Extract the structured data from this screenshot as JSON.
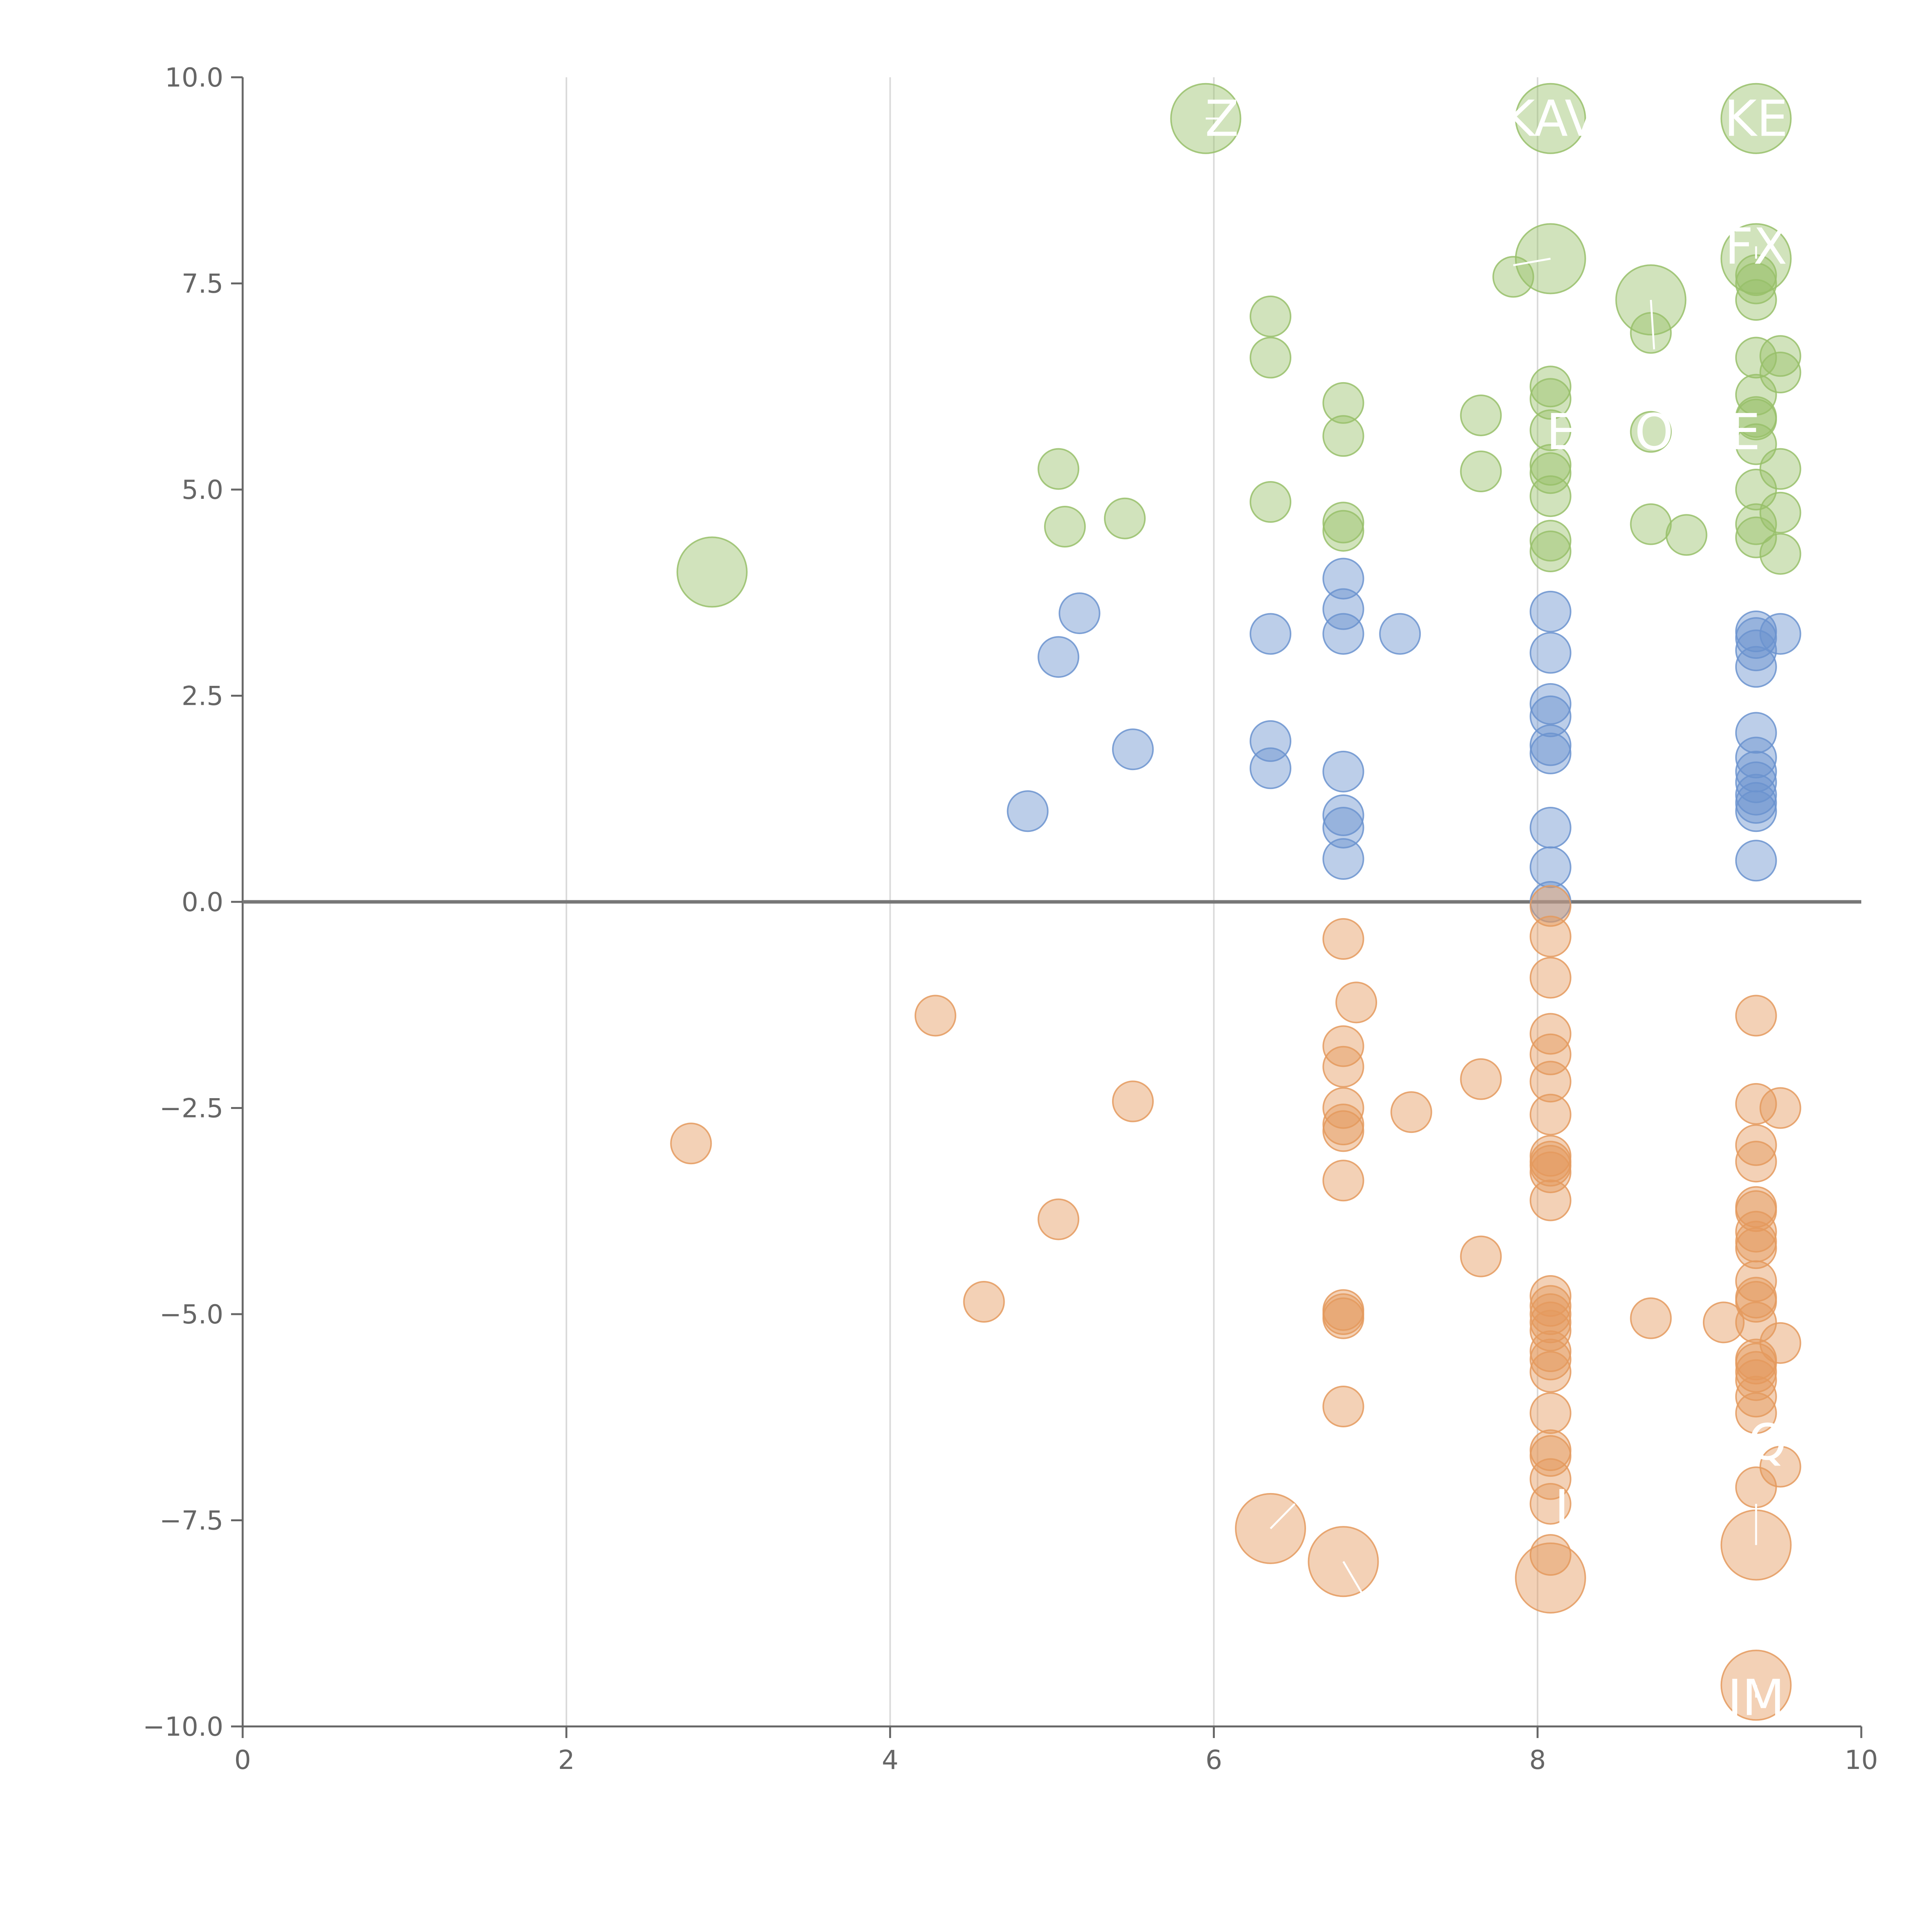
{
  "chart_data": {
    "type": "scatter",
    "title": "",
    "xlabel": "",
    "ylabel": "",
    "xlim": [
      0,
      10
    ],
    "ylim": [
      -10,
      10
    ],
    "x_ticks": [
      "0",
      "2",
      "4",
      "6",
      "8",
      "10"
    ],
    "y_ticks": [
      "10.0",
      "7.5",
      "5.0",
      "2.5",
      "0.0",
      "−2.5",
      "−5.0",
      "−7.5",
      "−10.0"
    ],
    "grid": "vertical gridlines at x ticks",
    "zero_line": true,
    "colors": {
      "green": "#98c06a",
      "blue": "#6b93cf",
      "orange": "#e49a5e"
    },
    "series": [
      {
        "color": "green",
        "points": [
          [
            2.9,
            4.0,
            2
          ],
          [
            5.04,
            5.25,
            1
          ],
          [
            5.08,
            4.55,
            1
          ],
          [
            5.45,
            4.65,
            1
          ],
          [
            6.35,
            7.1,
            1
          ],
          [
            6.35,
            6.6,
            1
          ],
          [
            6.35,
            4.85,
            1
          ],
          [
            6.8,
            6.05,
            1
          ],
          [
            6.8,
            5.65,
            1
          ],
          [
            6.8,
            4.6,
            1
          ],
          [
            6.8,
            4.5,
            1
          ],
          [
            7.65,
            5.9,
            1
          ],
          [
            7.65,
            5.22,
            1
          ],
          [
            7.85,
            7.58,
            1
          ],
          [
            8.08,
            6.25,
            1
          ],
          [
            8.08,
            6.1,
            1
          ],
          [
            8.08,
            5.72,
            1
          ],
          [
            8.08,
            5.3,
            1
          ],
          [
            8.08,
            5.2,
            1
          ],
          [
            8.08,
            4.92,
            1
          ],
          [
            8.08,
            4.38,
            1
          ],
          [
            8.08,
            4.25,
            1
          ],
          [
            8.7,
            6.9,
            1
          ],
          [
            8.7,
            5.7,
            1
          ],
          [
            8.7,
            4.58,
            1
          ],
          [
            8.92,
            4.45,
            1
          ],
          [
            9.35,
            7.6,
            1
          ],
          [
            9.35,
            7.5,
            1
          ],
          [
            9.35,
            7.3,
            1
          ],
          [
            9.35,
            6.6,
            1
          ],
          [
            9.35,
            6.15,
            1
          ],
          [
            9.35,
            5.88,
            1
          ],
          [
            9.35,
            5.85,
            1
          ],
          [
            9.35,
            5.55,
            1
          ],
          [
            9.35,
            5.0,
            1
          ],
          [
            9.35,
            4.58,
            1
          ],
          [
            9.35,
            4.42,
            1
          ],
          [
            9.5,
            6.62,
            1
          ],
          [
            9.5,
            6.42,
            1
          ],
          [
            9.5,
            5.25,
            1
          ],
          [
            9.5,
            4.72,
            1
          ],
          [
            9.5,
            4.22,
            1
          ]
        ]
      },
      {
        "color": "green",
        "points": [
          [
            5.95,
            9.5,
            2
          ],
          [
            8.08,
            9.5,
            2
          ],
          [
            9.35,
            9.5,
            2
          ],
          [
            8.08,
            7.8,
            2
          ],
          [
            8.7,
            7.3,
            2
          ],
          [
            9.35,
            7.8,
            2
          ]
        ]
      },
      {
        "color": "blue",
        "points": [
          [
            4.85,
            1.1,
            1
          ],
          [
            5.04,
            2.97,
            1
          ],
          [
            5.17,
            3.5,
            1
          ],
          [
            5.5,
            1.85,
            1
          ],
          [
            6.35,
            3.25,
            1
          ],
          [
            6.35,
            1.95,
            1
          ],
          [
            6.35,
            1.62,
            1
          ],
          [
            6.8,
            3.92,
            1
          ],
          [
            6.8,
            3.55,
            1
          ],
          [
            6.8,
            3.25,
            1
          ],
          [
            6.8,
            1.58,
            1
          ],
          [
            6.8,
            1.05,
            1
          ],
          [
            6.8,
            0.9,
            1
          ],
          [
            6.8,
            0.52,
            1
          ],
          [
            7.15,
            3.25,
            1
          ],
          [
            8.08,
            3.52,
            1
          ],
          [
            8.08,
            3.02,
            1
          ],
          [
            8.08,
            2.4,
            1
          ],
          [
            8.08,
            2.25,
            1
          ],
          [
            8.08,
            1.9,
            1
          ],
          [
            8.08,
            1.8,
            1
          ],
          [
            8.08,
            0.9,
            1
          ],
          [
            8.08,
            0.42,
            1
          ],
          [
            8.08,
            0.0,
            1
          ],
          [
            9.35,
            3.28,
            1
          ],
          [
            9.35,
            3.2,
            1
          ],
          [
            9.35,
            3.05,
            1
          ],
          [
            9.35,
            2.85,
            1
          ],
          [
            9.35,
            2.05,
            1
          ],
          [
            9.35,
            1.75,
            1
          ],
          [
            9.35,
            1.58,
            1
          ],
          [
            9.35,
            1.45,
            1
          ],
          [
            9.35,
            1.3,
            1
          ],
          [
            9.35,
            1.2,
            1
          ],
          [
            9.35,
            1.1,
            1
          ],
          [
            9.35,
            0.5,
            1
          ],
          [
            9.5,
            3.25,
            1
          ]
        ]
      },
      {
        "color": "orange",
        "points": [
          [
            2.77,
            -2.93,
            1
          ],
          [
            4.28,
            -1.38,
            1
          ],
          [
            4.58,
            -4.85,
            1
          ],
          [
            5.04,
            -3.85,
            1
          ],
          [
            5.5,
            -2.42,
            1
          ],
          [
            6.8,
            -0.45,
            1
          ],
          [
            6.8,
            -1.75,
            1
          ],
          [
            6.8,
            -2.0,
            1
          ],
          [
            6.8,
            -2.5,
            1
          ],
          [
            6.8,
            -2.7,
            1
          ],
          [
            6.8,
            -2.78,
            1
          ],
          [
            6.8,
            -3.38,
            1
          ],
          [
            6.8,
            -4.95,
            1
          ],
          [
            6.8,
            -5.0,
            1
          ],
          [
            6.8,
            -5.05,
            1
          ],
          [
            6.8,
            -6.12,
            1
          ],
          [
            6.88,
            -1.22,
            1
          ],
          [
            7.22,
            -2.55,
            1
          ],
          [
            7.65,
            -2.15,
            1
          ],
          [
            7.65,
            -4.3,
            1
          ],
          [
            8.08,
            -0.05,
            1
          ],
          [
            8.08,
            -0.42,
            1
          ],
          [
            8.08,
            -0.92,
            1
          ],
          [
            8.08,
            -1.6,
            1
          ],
          [
            8.08,
            -1.85,
            1
          ],
          [
            8.08,
            -2.18,
            1
          ],
          [
            8.08,
            -2.58,
            1
          ],
          [
            8.08,
            -3.08,
            1
          ],
          [
            8.08,
            -3.15,
            1
          ],
          [
            8.08,
            -3.2,
            1
          ],
          [
            8.08,
            -3.28,
            1
          ],
          [
            8.08,
            -3.62,
            1
          ],
          [
            8.08,
            -4.78,
            1
          ],
          [
            8.08,
            -4.9,
            1
          ],
          [
            8.08,
            -5.0,
            1
          ],
          [
            8.08,
            -5.1,
            1
          ],
          [
            8.08,
            -5.2,
            1
          ],
          [
            8.08,
            -5.45,
            1
          ],
          [
            8.08,
            -5.55,
            1
          ],
          [
            8.08,
            -5.7,
            1
          ],
          [
            8.08,
            -6.2,
            1
          ],
          [
            8.08,
            -6.65,
            1
          ],
          [
            8.08,
            -6.72,
            1
          ],
          [
            8.08,
            -7.0,
            1
          ],
          [
            8.08,
            -7.3,
            1
          ],
          [
            8.08,
            -7.92,
            1
          ],
          [
            8.7,
            -5.05,
            1
          ],
          [
            9.15,
            -5.1,
            1
          ],
          [
            9.35,
            -1.38,
            1
          ],
          [
            9.35,
            -2.45,
            1
          ],
          [
            9.35,
            -2.95,
            1
          ],
          [
            9.35,
            -3.15,
            1
          ],
          [
            9.35,
            -3.7,
            1
          ],
          [
            9.35,
            -3.75,
            1
          ],
          [
            9.35,
            -4.0,
            1
          ],
          [
            9.35,
            -4.12,
            1
          ],
          [
            9.35,
            -4.2,
            1
          ],
          [
            9.35,
            -4.6,
            1
          ],
          [
            9.35,
            -4.8,
            1
          ],
          [
            9.35,
            -4.85,
            1
          ],
          [
            9.35,
            -5.1,
            1
          ],
          [
            9.35,
            -5.55,
            1
          ],
          [
            9.35,
            -5.6,
            1
          ],
          [
            9.35,
            -5.7,
            1
          ],
          [
            9.35,
            -5.8,
            1
          ],
          [
            9.35,
            -6.0,
            1
          ],
          [
            9.35,
            -6.2,
            1
          ],
          [
            9.35,
            -7.1,
            1
          ],
          [
            9.5,
            -2.5,
            1
          ],
          [
            9.5,
            -5.35,
            1
          ],
          [
            9.5,
            -6.85,
            1
          ]
        ]
      },
      {
        "color": "orange",
        "points": [
          [
            6.35,
            -7.6,
            2
          ],
          [
            6.8,
            -8.0,
            2
          ],
          [
            8.08,
            -8.2,
            2
          ],
          [
            9.35,
            -7.8,
            2
          ],
          [
            9.35,
            -9.5,
            2
          ]
        ]
      }
    ],
    "annotations": [
      {
        "text": "Z",
        "x": 6.05,
        "y": 9.5,
        "from": [
          5.95,
          9.5
        ]
      },
      {
        "text": "KAV",
        "x": 8.08,
        "y": 9.5,
        "from": [
          8.08,
          9.5
        ]
      },
      {
        "text": "KE",
        "x": 9.35,
        "y": 9.5,
        "from": [
          9.35,
          9.5
        ]
      },
      {
        "text": "FX",
        "x": 9.35,
        "y": 7.95,
        "from": [
          9.35,
          7.8
        ]
      },
      {
        "text": "",
        "x": 7.85,
        "y": 7.72,
        "from": [
          8.08,
          7.8
        ]
      },
      {
        "text": "",
        "x": 8.72,
        "y": 6.7,
        "from": [
          8.7,
          7.3
        ]
      },
      {
        "text": "E",
        "x": 8.15,
        "y": 5.7,
        "from": null
      },
      {
        "text": "O",
        "x": 8.72,
        "y": 5.7,
        "from": null
      },
      {
        "text": "E",
        "x": 9.28,
        "y": 5.7,
        "from": null
      },
      {
        "text": "Q",
        "x": 9.42,
        "y": -6.55,
        "from": null
      },
      {
        "text": "I",
        "x": 8.15,
        "y": -7.35,
        "from": null
      },
      {
        "text": "",
        "x": 9.35,
        "y": -7.3,
        "from": [
          9.35,
          -7.8
        ]
      },
      {
        "text": "",
        "x": 6.5,
        "y": -7.3,
        "from": [
          6.35,
          -7.6
        ]
      },
      {
        "text": "",
        "x": 6.92,
        "y": -8.4,
        "from": [
          6.8,
          -8.0
        ]
      },
      {
        "text": "IM",
        "x": 9.35,
        "y": -9.65,
        "from": [
          9.35,
          -9.5
        ]
      }
    ]
  }
}
